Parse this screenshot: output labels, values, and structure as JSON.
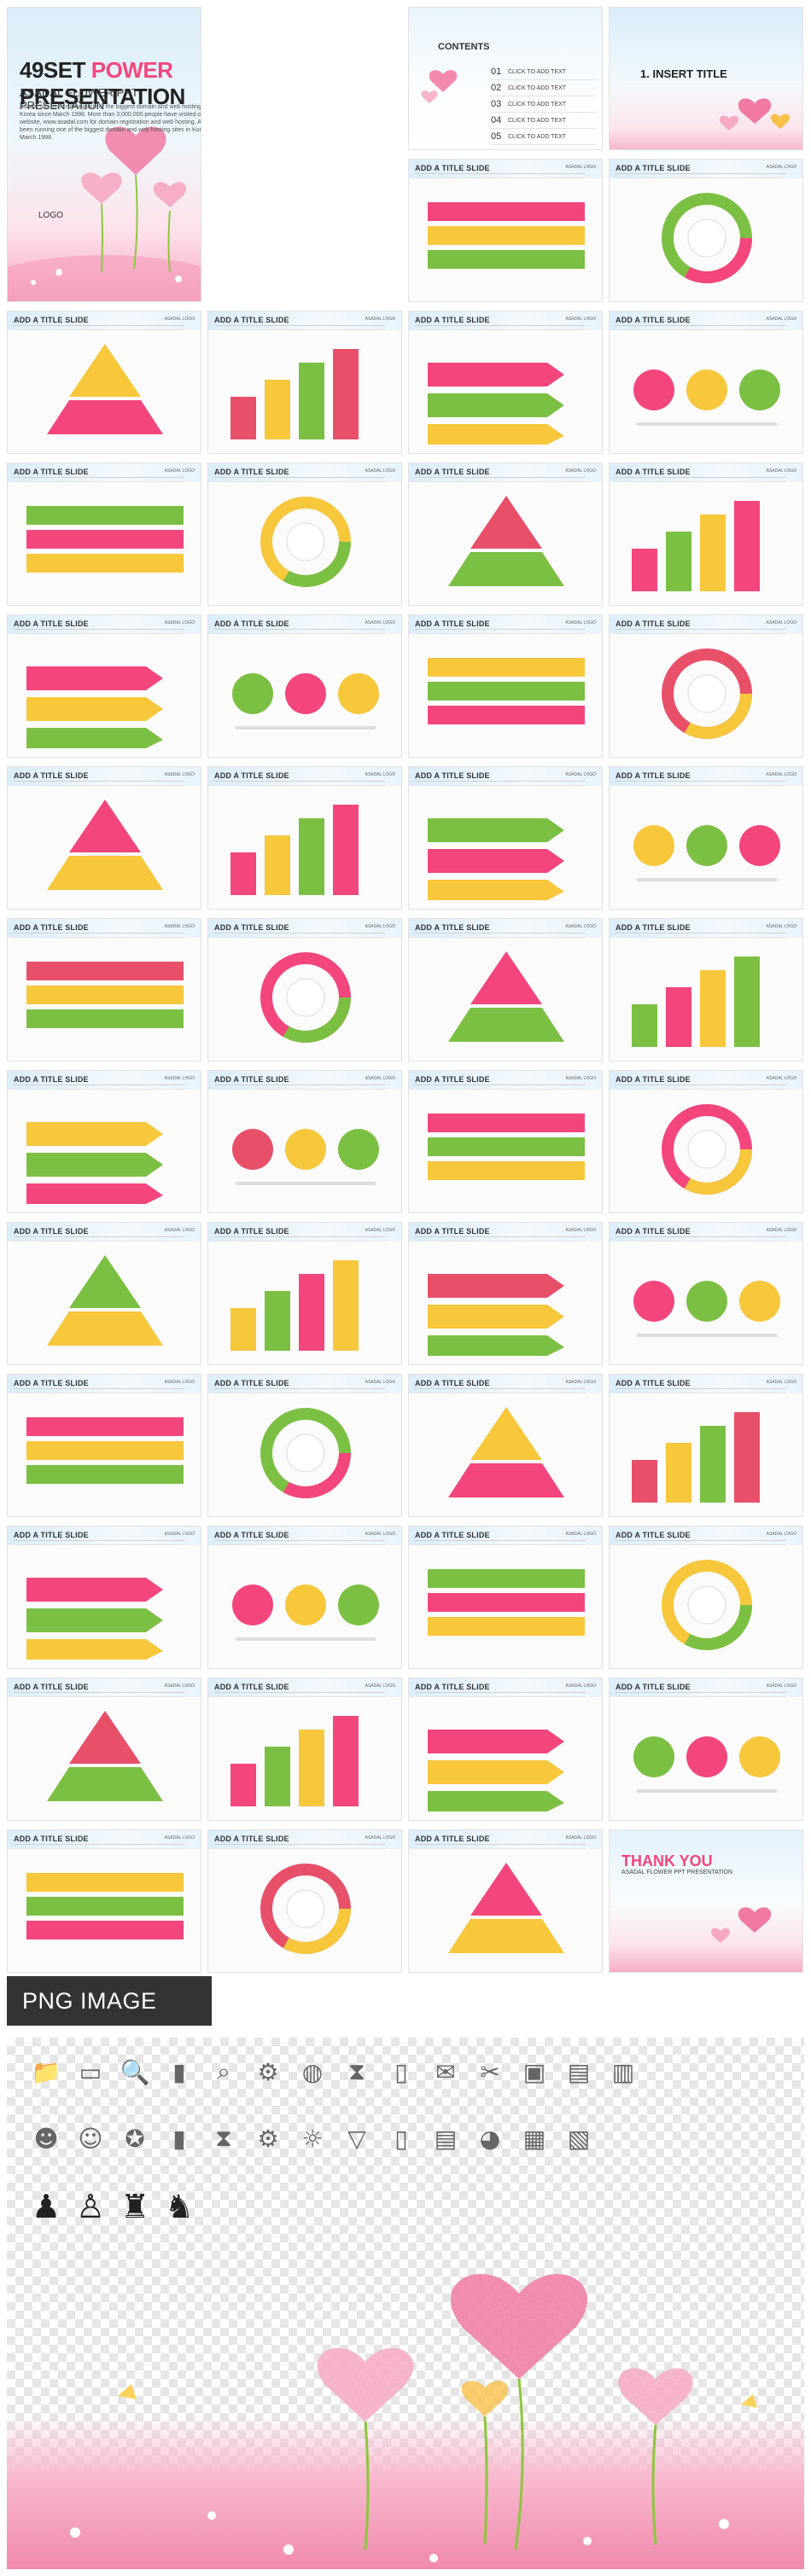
{
  "cover": {
    "title_part1": "49SET",
    "title_part2": "POWER",
    "title_part3": "PRESENTATION",
    "subtitle": "ASADAL FLOWER PPT PRESENTATION",
    "body": "Asadal has been running one of the biggest domain and web hosting sites in Korea since March 1998. More than 3,000,000 people have visited our website, www.asadal.com for domain registration and web hosting. Asadal has been running one of the biggest domain and web hosting sites in Korea since March 1998.",
    "logo": "LOGO"
  },
  "contents": {
    "heading": "CONTENTS",
    "items": [
      {
        "num": "01",
        "text": "CLICK TO ADD TEXT"
      },
      {
        "num": "02",
        "text": "CLICK TO ADD TEXT"
      },
      {
        "num": "03",
        "text": "CLICK TO ADD TEXT"
      },
      {
        "num": "04",
        "text": "CLICK TO ADD TEXT"
      },
      {
        "num": "05",
        "text": "CLICK TO ADD TEXT"
      }
    ]
  },
  "section": {
    "title": "1. INSERT TITLE"
  },
  "slide_title": "ADD A TITLE SLIDE",
  "slide_logo": "ASADAL LOGO",
  "thank_you": {
    "title": "THANK YOU",
    "subtitle": "ASADAL FLOWER PPT PRESENTATION"
  },
  "png_section": {
    "label": "PNG IMAGE"
  },
  "colors": {
    "pink": "#f3467c",
    "green": "#7bc043",
    "yellow": "#f7c73c",
    "red": "#e8506a",
    "gray": "#555555"
  },
  "icons_row1": [
    "folder-icon",
    "tablet-icon",
    "monitor-search-icon",
    "bar-chart-icon",
    "magnifier-icon",
    "gear-icon",
    "globe-icon",
    "hourglass-icon",
    "smartphone-icon",
    "mail-icon",
    "tools-icon",
    "floppy-disk-icon",
    "browser-icon",
    "clipboard-icon"
  ],
  "icons_row2": [
    "businessman-icon",
    "businessman-glasses-icon",
    "award-icon",
    "bar-chart-icon",
    "hourglass-icon",
    "gears-icon",
    "lightbulb-icon",
    "shirt-icon",
    "smartphone-icon",
    "browser-icon",
    "paint-palette-icon",
    "calendar-icon",
    "document-icon"
  ],
  "icons_row3": [
    "speaker-at-desk-icon",
    "meeting-icon",
    "podium-winner-icon",
    "celebrating-person-icon"
  ]
}
